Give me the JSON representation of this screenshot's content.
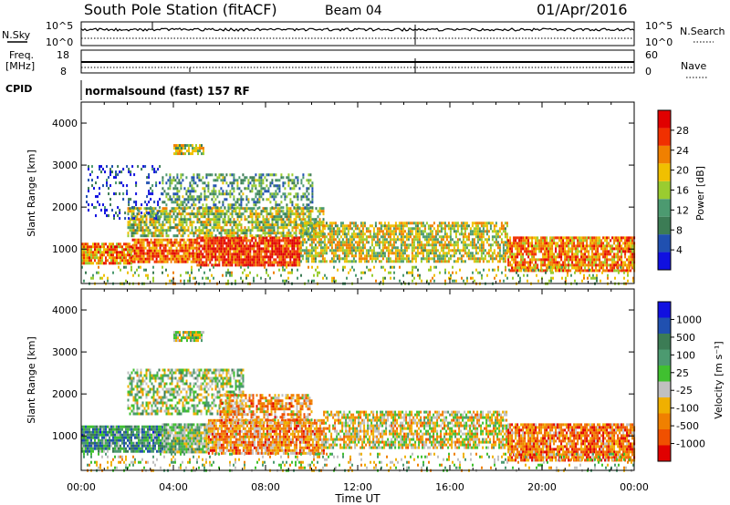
{
  "header": {
    "station": "South Pole Station (fitACF)",
    "beam": "Beam 04",
    "date": "01/Apr/2016"
  },
  "strips": {
    "nsky_label": "N.Sky",
    "nsky_ticks": [
      "10^5",
      "10^0"
    ],
    "nsearch_label": "N.Search",
    "nsearch_ticks": [
      "10^5",
      "10^0"
    ],
    "freq_label": "Freq.",
    "freq_unit": "[MHz]",
    "freq_ticks": [
      "18",
      "8"
    ],
    "nave_label": "Nave",
    "nave_ticks": [
      "60",
      "0"
    ],
    "cpid_label": "CPID",
    "cpid_value": "normalsound (fast) 157 RF"
  },
  "colors": {
    "power": [
      "#1010e0",
      "#2050b0",
      "#3c7c55",
      "#4c9a70",
      "#9acc30",
      "#f0c000",
      "#f08000",
      "#f03000",
      "#e00000"
    ],
    "velocity": [
      "#1010e0",
      "#2050b0",
      "#3c7c55",
      "#4c9a70",
      "#40c030",
      "#c0c0c0",
      "#f0b000",
      "#f08000",
      "#f05000",
      "#e00000"
    ]
  },
  "chart_data": [
    {
      "type": "heatmap",
      "name": "power",
      "ylabel": "Slant Range [km]",
      "xlabel": "Time UT",
      "x_ticks": [
        "00:00",
        "04:00",
        "08:00",
        "12:00",
        "16:00",
        "20:00",
        "00:00"
      ],
      "xlim_hours": [
        0,
        24
      ],
      "ylim_km": [
        180,
        4500
      ],
      "y_ticks": [
        1000,
        2000,
        3000,
        4000
      ],
      "colorbar": {
        "label": "Power [dB]",
        "range": [
          0,
          32
        ],
        "ticks": [
          4,
          8,
          12,
          16,
          20,
          24,
          28
        ]
      },
      "scatter_bands": [
        {
          "t0": 0.0,
          "t1": 2.2,
          "r0": 650,
          "r1": 1150,
          "lvl": 0.72,
          "d": 0.9
        },
        {
          "t0": 2.2,
          "t1": 5.0,
          "r0": 700,
          "r1": 1250,
          "lvl": 0.78,
          "d": 0.9
        },
        {
          "t0": 5.0,
          "t1": 9.5,
          "r0": 600,
          "r1": 1300,
          "lvl": 0.86,
          "d": 0.9
        },
        {
          "t0": 2.0,
          "t1": 10.5,
          "r0": 1300,
          "r1": 2000,
          "lvl": 0.5,
          "d": 0.7
        },
        {
          "t0": 3.5,
          "t1": 10.0,
          "r0": 2000,
          "r1": 2800,
          "lvl": 0.35,
          "d": 0.45
        },
        {
          "t0": 0.2,
          "t1": 3.5,
          "r0": 1700,
          "r1": 3000,
          "lvl": 0.15,
          "d": 0.18
        },
        {
          "t0": 4.0,
          "t1": 5.3,
          "r0": 3300,
          "r1": 3500,
          "lvl": 0.5,
          "d": 0.8
        },
        {
          "t0": 9.5,
          "t1": 18.5,
          "r0": 700,
          "r1": 1650,
          "lvl": 0.55,
          "d": 0.7
        },
        {
          "t0": 18.5,
          "t1": 24.0,
          "r0": 500,
          "r1": 1300,
          "lvl": 0.72,
          "d": 0.85
        },
        {
          "t0": 0.0,
          "t1": 24.0,
          "r0": 200,
          "r1": 600,
          "lvl": 0.5,
          "d": 0.2
        }
      ]
    },
    {
      "type": "heatmap",
      "name": "velocity",
      "ylabel": "Slant Range [km]",
      "xlabel": "Time UT",
      "x_ticks": [
        "00:00",
        "04:00",
        "08:00",
        "12:00",
        "16:00",
        "20:00",
        "00:00"
      ],
      "xlim_hours": [
        0,
        24
      ],
      "ylim_km": [
        180,
        4500
      ],
      "y_ticks": [
        1000,
        2000,
        3000,
        4000
      ],
      "colorbar": {
        "label": "Velocity [m s⁻¹]",
        "ticks": [
          "1000",
          "500",
          "100",
          "25",
          "-25",
          "-100",
          "-500",
          "-1000"
        ]
      },
      "scatter_bands": [
        {
          "t0": 0.0,
          "t1": 3.5,
          "r0": 650,
          "r1": 1250,
          "lvl": 0.32,
          "d": 0.9
        },
        {
          "t0": 3.5,
          "t1": 5.5,
          "r0": 600,
          "r1": 1300,
          "lvl": 0.45,
          "d": 0.9
        },
        {
          "t0": 5.5,
          "t1": 10.5,
          "r0": 600,
          "r1": 1400,
          "lvl": 0.72,
          "d": 0.85
        },
        {
          "t0": 2.0,
          "t1": 7.0,
          "r0": 1500,
          "r1": 2600,
          "lvl": 0.5,
          "d": 0.55
        },
        {
          "t0": 4.0,
          "t1": 5.3,
          "r0": 3300,
          "r1": 3500,
          "lvl": 0.5,
          "d": 0.8
        },
        {
          "t0": 6.0,
          "t1": 10.0,
          "r0": 1300,
          "r1": 2000,
          "lvl": 0.7,
          "d": 0.6
        },
        {
          "t0": 10.5,
          "t1": 18.5,
          "r0": 700,
          "r1": 1600,
          "lvl": 0.6,
          "d": 0.7
        },
        {
          "t0": 18.5,
          "t1": 24.0,
          "r0": 450,
          "r1": 1300,
          "lvl": 0.78,
          "d": 0.85
        },
        {
          "t0": 0.0,
          "t1": 24.0,
          "r0": 200,
          "r1": 600,
          "lvl": 0.55,
          "d": 0.2
        }
      ]
    }
  ]
}
